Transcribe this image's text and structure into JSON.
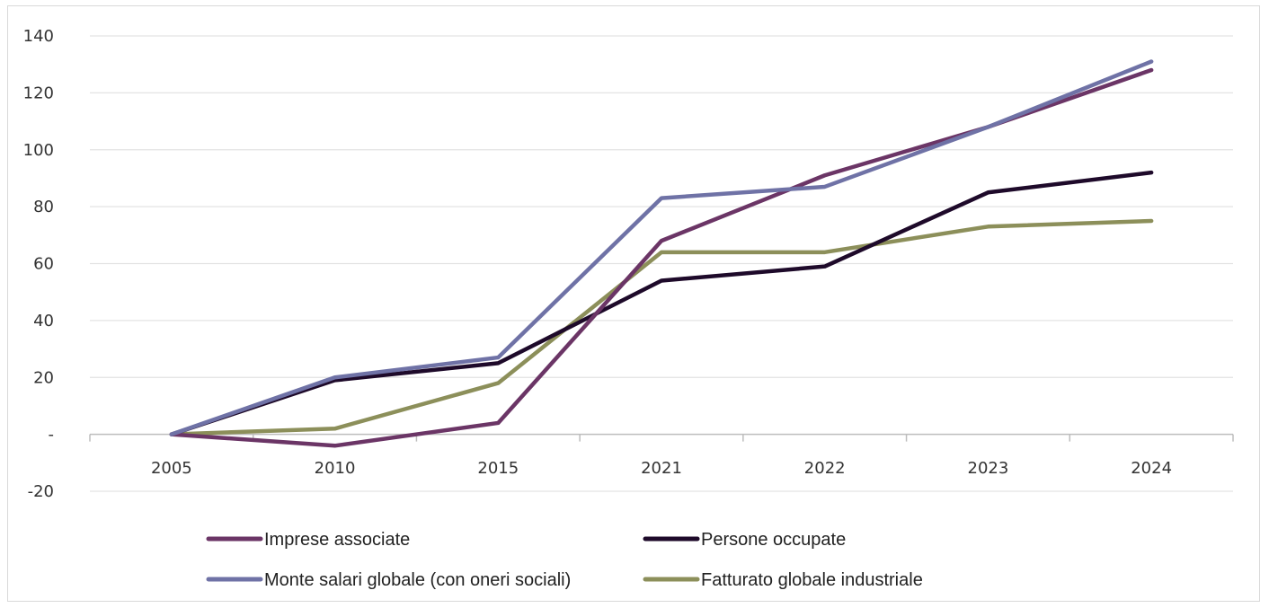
{
  "chart_data": {
    "type": "line",
    "title": "",
    "xlabel": "",
    "ylabel": "",
    "categories": [
      "2005",
      "2010",
      "2015",
      "2021",
      "2022",
      "2023",
      "2024"
    ],
    "ylim": [
      -20,
      140
    ],
    "yticks": [
      {
        "value": 140,
        "label": "140"
      },
      {
        "value": 120,
        "label": "120"
      },
      {
        "value": 100,
        "label": "100"
      },
      {
        "value": 80,
        "label": "80"
      },
      {
        "value": 60,
        "label": "60"
      },
      {
        "value": 40,
        "label": "40"
      },
      {
        "value": 20,
        "label": "20"
      },
      {
        "value": 0,
        "label": "-"
      },
      {
        "value": -20,
        "label": "-20"
      }
    ],
    "grid": true,
    "legend_position": "bottom",
    "series": [
      {
        "name": "Imprese associate",
        "color": "#6b3566",
        "values": [
          0,
          -4,
          4,
          68,
          91,
          108,
          128
        ]
      },
      {
        "name": "Persone occupate",
        "color": "#1e0a2a",
        "values": [
          0,
          19,
          25,
          54,
          59,
          85,
          92
        ]
      },
      {
        "name": "Monte salari globale (con oneri sociali)",
        "color": "#6f72a6",
        "values": [
          0,
          20,
          27,
          83,
          87,
          108,
          131
        ]
      },
      {
        "name": "Fatturato globale industriale",
        "color": "#8c8f5a",
        "values": [
          0,
          2,
          18,
          64,
          64,
          73,
          75
        ]
      }
    ]
  }
}
